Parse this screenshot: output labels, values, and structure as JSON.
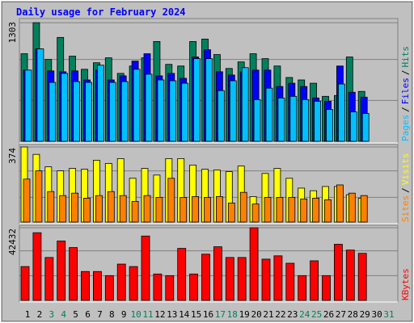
{
  "title": "Daily usage for February 2024",
  "categories": [
    "1",
    "2",
    "3",
    "4",
    "5",
    "6",
    "7",
    "8",
    "9",
    "10",
    "11",
    "12",
    "13",
    "14",
    "15",
    "16",
    "17",
    "18",
    "19",
    "20",
    "21",
    "22",
    "23",
    "24",
    "25",
    "26",
    "27",
    "28",
    "29",
    "30",
    "31"
  ],
  "x_label_colors": [
    "#000000",
    "#000000",
    "#00805c",
    "#00805c",
    "#000000",
    "#000000",
    "#000000",
    "#000000",
    "#000000",
    "#00805c",
    "#00805c",
    "#000000",
    "#000000",
    "#000000",
    "#000000",
    "#000000",
    "#00805c",
    "#00805c",
    "#000000",
    "#000000",
    "#000000",
    "#000000",
    "#000000",
    "#00805c",
    "#00805c",
    "#000000",
    "#000000",
    "#000000",
    "#000000",
    "#000000",
    "#00805c"
  ],
  "legend_separator": "/",
  "chart_data": [
    {
      "type": "bar",
      "ylim": [
        0,
        1348
      ],
      "yticks": [
        1303
      ],
      "grid": [
        449,
        899
      ],
      "series": [
        {
          "name": "Hits",
          "color": "#00805c",
          "values": [
            962,
            1303,
            899,
            1141,
            935,
            791,
            863,
            917,
            746,
            827,
            917,
            1096,
            845,
            827,
            1096,
            1123,
            953,
            800,
            872,
            962,
            908,
            827,
            701,
            674,
            638,
            494,
            503,
            926,
            548,
            null,
            null
          ]
        },
        {
          "name": "Files",
          "color": "#0000ff",
          "values": [
            782,
            1015,
            773,
            764,
            773,
            674,
            782,
            674,
            719,
            881,
            962,
            719,
            746,
            692,
            926,
            1006,
            764,
            728,
            764,
            782,
            782,
            602,
            638,
            602,
            476,
            440,
            827,
            539,
            485,
            null,
            null
          ]
        },
        {
          "name": "Pages",
          "color": "#00c0ff",
          "values": [
            782,
            1015,
            647,
            746,
            656,
            647,
            836,
            647,
            656,
            791,
            737,
            674,
            665,
            638,
            908,
            908,
            557,
            665,
            809,
            458,
            584,
            476,
            494,
            458,
            440,
            350,
            629,
            323,
            306,
            null,
            null
          ]
        }
      ]
    },
    {
      "type": "bar",
      "ylim": [
        0,
        386
      ],
      "yticks": [
        374
      ],
      "grid": [
        123,
        255
      ],
      "series": [
        {
          "name": "Visits",
          "color": "#ffff00",
          "values": [
            374,
            337,
            275,
            255,
            267,
            263,
            308,
            292,
            316,
            218,
            267,
            234,
            316,
            316,
            284,
            263,
            259,
            251,
            279,
            127,
            242,
            267,
            218,
            169,
            156,
            177,
            177,
            136,
            119,
            null,
            null
          ]
        },
        {
          "name": "Sites",
          "color": "#ff8000",
          "values": [
            214,
            255,
            152,
            132,
            144,
            119,
            132,
            152,
            132,
            103,
            132,
            123,
            218,
            123,
            127,
            123,
            127,
            95,
            148,
            90,
            123,
            123,
            123,
            115,
            119,
            111,
            185,
            144,
            132,
            null,
            null
          ]
        }
      ]
    },
    {
      "type": "bar",
      "ylim": [
        0,
        43862
      ],
      "yticks": [
        42432
      ],
      "grid": [
        14460,
        28920
      ],
      "series": [
        {
          "name": "KBytes",
          "color": "#ff0000",
          "values": [
            19762,
            39524,
            25064,
            34704,
            30848,
            16870,
            16870,
            14460,
            21208,
            19762,
            37596,
            15424,
            14460,
            30366,
            15424,
            26992,
            31330,
            25064,
            25064,
            42432,
            24100,
            26028,
            21690,
            14460,
            23136,
            14460,
            32776,
            29402,
            27474,
            null,
            null
          ]
        }
      ]
    }
  ]
}
